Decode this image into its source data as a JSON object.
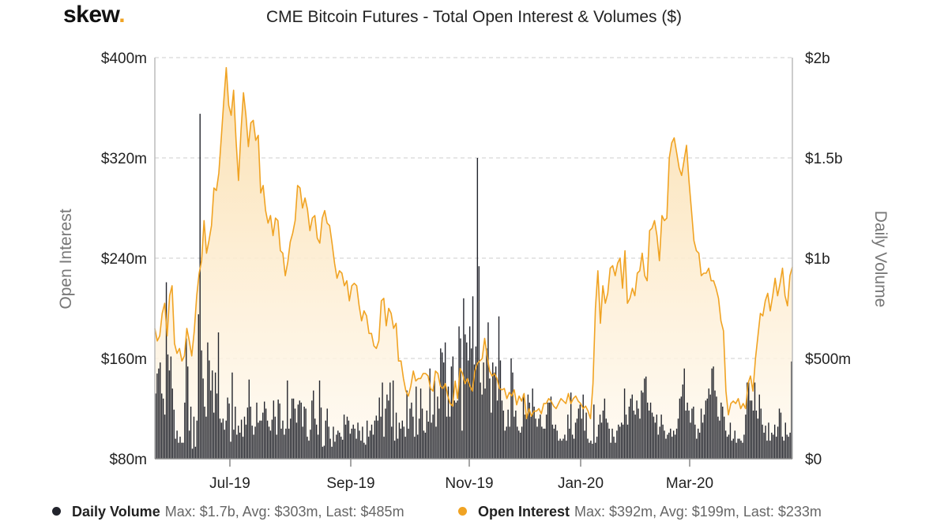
{
  "header": {
    "logo_text": "skew",
    "logo_dot": ".",
    "title": "CME Bitcoin Futures - Total Open Interest & Volumes ($)"
  },
  "colors": {
    "volume": "#22242c",
    "open_interest": "#f0a323",
    "area_top": "#fbe3b8",
    "area_bottom": "#fffaf2",
    "grid": "#dddddd"
  },
  "legend": [
    {
      "name": "Daily Volume",
      "stats": "Max: $1.7b, Avg: $303m, Last: $485m",
      "color": "#22242c"
    },
    {
      "name": "Open Interest",
      "stats": "Max: $392m, Avg: $199m, Last: $233m",
      "color": "#f0a323"
    }
  ],
  "chart_data": {
    "type": "line+bar",
    "title": "CME Bitcoin Futures - Total Open Interest & Volumes ($)",
    "x_tick_labels": [
      "Jul-19",
      "Sep-19",
      "Nov-19",
      "Jan-20",
      "Mar-20"
    ],
    "y_left": {
      "label": "Open Interest",
      "ticks": [
        "$80m",
        "$160m",
        "$240m",
        "$320m",
        "$400m"
      ],
      "range": [
        80,
        400
      ],
      "unit": "m USD"
    },
    "y_right": {
      "label": "Daily Volume",
      "ticks": [
        "$0",
        "$500m",
        "$1b",
        "$1.5b",
        "$2b"
      ],
      "range": [
        0,
        2000
      ],
      "unit": "m USD"
    },
    "grid": true,
    "legend_position": "bottom",
    "series": [
      {
        "name": "Open Interest",
        "type": "area-line",
        "axis": "left",
        "values": [
          184,
          174,
          178,
          196,
          204,
          178,
          210,
          218,
          172,
          164,
          168,
          158,
          162,
          184,
          174,
          162,
          182,
          210,
          228,
          238,
          270,
          244,
          254,
          266,
          296,
          294,
          308,
          336,
          365,
          392,
          362,
          354,
          374,
          334,
          302,
          342,
          372,
          354,
          329,
          348,
          350,
          334,
          338,
          292,
          298,
          278,
          268,
          274,
          258,
          272,
          270,
          246,
          244,
          226,
          237,
          253,
          260,
          270,
          298,
          296,
          280,
          288,
          279,
          262,
          272,
          274,
          256,
          252,
          272,
          278,
          268,
          266,
          252,
          236,
          224,
          230,
          228,
          218,
          222,
          206,
          218,
          220,
          218,
          202,
          190,
          198,
          194,
          180,
          180,
          170,
          168,
          174,
          206,
          208,
          186,
          200,
          196,
          184,
          188,
          158,
          158,
          144,
          134,
          130,
          138,
          150,
          142,
          144,
          144,
          148,
          148,
          146,
          136,
          134,
          150,
          148,
          138,
          136,
          140,
          130,
          124,
          122,
          142,
          128,
          152,
          148,
          140,
          144,
          138,
          134,
          150,
          156,
          158,
          160,
          176,
          162,
          150,
          146,
          148,
          144,
          136,
          135,
          136,
          128,
          133,
          130,
          135,
          123,
          130,
          126,
          132,
          112,
          120,
          114,
          118,
          118,
          120,
          116,
          124,
          124,
          128,
          126,
          122,
          120,
          124,
          128,
          126,
          124,
          132,
          124,
          128,
          130,
          126,
          124,
          120,
          122,
          118,
          112,
          140,
          200,
          230,
          188,
          218,
          204,
          212,
          232,
          234,
          226,
          236,
          240,
          216,
          246,
          204,
          208,
          216,
          210,
          228,
          230,
          244,
          226,
          222,
          262,
          264,
          270,
          258,
          238,
          274,
          270,
          272,
          320,
          332,
          336,
          324,
          312,
          306,
          318,
          330,
          302,
          278,
          254,
          246,
          244,
          226,
          228,
          228,
          232,
          222,
          222,
          216,
          208,
          190,
          182,
          134,
          115,
          124,
          126,
          124,
          128,
          120,
          124,
          120,
          140,
          146,
          134,
          160,
          178,
          196,
          194,
          206,
          212,
          198,
          210,
          224,
          210,
          220,
          232,
          210,
          202,
          226,
          233
        ]
      },
      {
        "name": "Daily Volume",
        "type": "bar",
        "axis": "right",
        "values": [
          325,
          425,
          450,
          480,
          325,
          300,
          220,
          880,
          520,
          440,
          510,
          350,
          245,
          100,
          140,
          80,
          110,
          80,
          80,
          280,
          600,
          460,
          140,
          260,
          50,
          210,
          60,
          190,
          720,
          1720,
          540,
          400,
          260,
          210,
          580,
          490,
          340,
          440,
          230,
          430,
          325,
          630,
          200,
          180,
          200,
          145,
          190,
          305,
          275,
          85,
          430,
          145,
          260,
          120,
          165,
          130,
          195,
          110,
          210,
          170,
          255,
          395,
          260,
          165,
          120,
          160,
          280,
          180,
          190,
          190,
          230,
          285,
          250,
          190,
          160,
          140,
          195,
          290,
          210,
          120,
          295,
          275,
          150,
          190,
          120,
          150,
          390,
          150,
          200,
          300,
          300,
          250,
          180,
          270,
          290,
          280,
          160,
          260,
          250,
          110,
          90,
          145,
          290,
          340,
          200,
          170,
          120,
          390,
          255,
          60,
          65,
          190,
          250,
          160,
          100,
          60,
          160,
          85,
          120,
          140,
          130,
          110,
          95,
          220,
          170,
          210,
          190,
          125,
          150,
          170,
          150,
          100,
          180,
          140,
          90,
          160,
          80,
          70,
          190,
          110,
          140,
          170,
          120,
          190,
          215,
          190,
          305,
          210,
          380,
          110,
          250,
          320,
          290,
          380,
          160,
          390,
          90,
          230,
          100,
          180,
          150,
          190,
          160,
          110,
          340,
          150,
          250,
          280,
          210,
          110,
          360,
          120,
          200,
          350,
          250,
          140,
          130,
          240,
          185,
          450,
          180,
          220,
          390,
          160,
          310,
          250,
          550,
          530,
          480,
          580,
          210,
          360,
          210,
          460,
          510,
          290,
          280,
          290,
          660,
          600,
          140,
          800,
          620,
          580,
          490,
          660,
          550,
          810,
          470,
          560,
          1500,
          960,
          380,
          320,
          480,
          350,
          550,
          680,
          400,
          230,
          480,
          430,
          460,
          290,
          710,
          490,
          290,
          240,
          140,
          160,
          245,
          160,
          500,
          430,
          210,
          240,
          160,
          140,
          130,
          160,
          320,
          220,
          200,
          320,
          280,
          210,
          350,
          260,
          200,
          160,
          200,
          220,
          160,
          150,
          150,
          220,
          280,
          280,
          310,
          170,
          150,
          170,
          140,
          90,
          100,
          90,
          100,
          120,
          90,
          220,
          150,
          330,
          120,
          100,
          180,
          200,
          250,
          270,
          200,
          320,
          140,
          230,
          100,
          80,
          90,
          75,
          270,
          80,
          110,
          170,
          220,
          180,
          240,
          300,
          200,
          180,
          150,
          80,
          150,
          110,
          80,
          140,
          170,
          160,
          180,
          170,
          350,
          220,
          170,
          260,
          300,
          320,
          240,
          220,
          290,
          250,
          200,
          340,
          330,
          400,
          410,
          280,
          240,
          280,
          230,
          210,
          180,
          220,
          120,
          160,
          220,
          170,
          140,
          100,
          120,
          130,
          150,
          110,
          140,
          120,
          150,
          200,
          300,
          310,
          370,
          450,
          240,
          280,
          240,
          180,
          250,
          260,
          170,
          100,
          150,
          130,
          250,
          180,
          220,
          290,
          300,
          350,
          320,
          450,
          460,
          340,
          310,
          210,
          190,
          280,
          260,
          210,
          140,
          110,
          120,
          180,
          90,
          100,
          140,
          80,
          100,
          100,
          90,
          80,
          120,
          220,
          380,
          380,
          290,
          290,
          240,
          380,
          240,
          200,
          320,
          250,
          170,
          130,
          165,
          90,
          180,
          90,
          130,
          120,
          170,
          110,
          160,
          250,
          230,
          110,
          90,
          180,
          120,
          110,
          130,
          485
        ]
      }
    ]
  }
}
